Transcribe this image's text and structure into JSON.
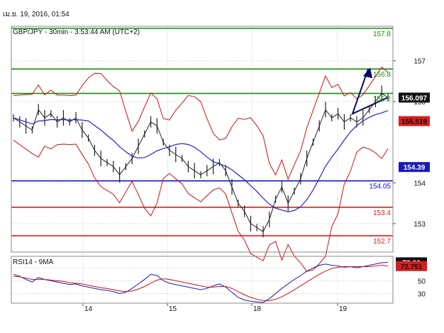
{
  "header": {
    "timestamp": "เม.ย. 19, 2016, 01:54"
  },
  "chart_data": [
    {
      "type": "line",
      "title": "GBP/JPY - 30min - 3:53:44 AM (UTC+2)",
      "ylim": [
        152.3,
        157.85
      ],
      "y_ticks": [
        {
          "v": 157,
          "label": "157"
        },
        {
          "v": 156,
          "label": "156"
        },
        {
          "v": 154,
          "label": "154"
        },
        {
          "v": 153,
          "label": "153"
        }
      ],
      "x_ticks": [
        {
          "x": 14,
          "label": "14"
        },
        {
          "x": 15,
          "label": "15"
        },
        {
          "x": 18,
          "label": "18"
        },
        {
          "x": 19,
          "label": "19"
        }
      ],
      "grid": true,
      "levels": [
        {
          "value": 157.8,
          "label": "157.8",
          "color": "#1a8c1a"
        },
        {
          "value": 156.8,
          "label": "156.8",
          "color": "#1a8c1a"
        },
        {
          "value": 156.2,
          "label": "156.2",
          "color": "#1a8c1a"
        },
        {
          "value": 154.05,
          "label": "154.05",
          "color": "#1515c8"
        },
        {
          "value": 153.4,
          "label": "153.4",
          "color": "#d42020"
        },
        {
          "value": 152.7,
          "label": "152.7",
          "color": "#d42020"
        }
      ],
      "badges": [
        {
          "value": 156.097,
          "label": "156.097",
          "bg": "#111111",
          "fg": "#ffffff"
        },
        {
          "value": 155.519,
          "label": "155.519",
          "bg": "#d41e1e",
          "fg": "#111111"
        },
        {
          "value": 154.39,
          "label": "154.39",
          "bg": "#1a1ab8",
          "fg": "#ffffff"
        }
      ],
      "price": [
        [
          13.0,
          155.6
        ],
        [
          13.1,
          155.5
        ],
        [
          13.2,
          155.4
        ],
        [
          13.3,
          155.3
        ],
        [
          13.4,
          155.8
        ],
        [
          13.5,
          155.6
        ],
        [
          13.6,
          155.7
        ],
        [
          13.7,
          155.5
        ],
        [
          13.8,
          155.6
        ],
        [
          13.9,
          155.5
        ],
        [
          14.0,
          155.6
        ],
        [
          14.1,
          155.3
        ],
        [
          14.2,
          155.1
        ],
        [
          14.3,
          154.8
        ],
        [
          14.4,
          154.6
        ],
        [
          14.5,
          154.5
        ],
        [
          14.6,
          154.4
        ],
        [
          14.7,
          154.2
        ],
        [
          14.8,
          154.4
        ],
        [
          14.9,
          154.6
        ],
        [
          15.0,
          154.9
        ],
        [
          15.1,
          155.2
        ],
        [
          15.2,
          155.5
        ],
        [
          15.3,
          155.4
        ],
        [
          15.4,
          155.0
        ],
        [
          15.5,
          154.8
        ],
        [
          15.6,
          154.7
        ],
        [
          15.7,
          154.6
        ],
        [
          15.8,
          154.4
        ],
        [
          15.9,
          154.3
        ],
        [
          16.0,
          154.2
        ],
        [
          16.1,
          154.3
        ],
        [
          16.2,
          154.4
        ],
        [
          16.3,
          154.5
        ],
        [
          16.4,
          154.3
        ],
        [
          16.5,
          153.9
        ],
        [
          16.6,
          153.5
        ],
        [
          16.7,
          153.3
        ],
        [
          16.8,
          153.0
        ],
        [
          16.9,
          152.9
        ],
        [
          17.0,
          152.8
        ],
        [
          17.1,
          153.1
        ],
        [
          17.2,
          153.6
        ],
        [
          17.3,
          153.9
        ],
        [
          17.4,
          153.5
        ],
        [
          17.5,
          153.8
        ],
        [
          17.6,
          154.1
        ],
        [
          17.7,
          154.6
        ],
        [
          17.8,
          155.0
        ],
        [
          17.9,
          155.4
        ],
        [
          18.0,
          155.8
        ],
        [
          18.1,
          155.6
        ],
        [
          18.2,
          155.7
        ],
        [
          18.3,
          155.5
        ],
        [
          18.4,
          155.6
        ],
        [
          18.5,
          155.5
        ],
        [
          18.6,
          155.6
        ],
        [
          18.7,
          155.8
        ],
        [
          18.8,
          156.0
        ],
        [
          18.9,
          156.2
        ],
        [
          19.0,
          156.1
        ]
      ],
      "forecast_path": [
        [
          19.0,
          156.1
        ],
        [
          19.12,
          155.7
        ],
        [
          19.33,
          156.8
        ]
      ],
      "indicators": [
        {
          "name": "RSI14 - 9MA",
          "y_ticks": [
            {
              "v": 70,
              "label": "70"
            },
            {
              "v": 50,
              "label": "50"
            },
            {
              "v": 30,
              "label": "30"
            }
          ],
          "badges": [
            {
              "value": 78.66,
              "label": "78.66",
              "bg": "#111111",
              "fg": "#ffffff"
            },
            {
              "value": 72.751,
              "label": "72.751",
              "bg": "#d41e1e",
              "fg": "#111111"
            }
          ],
          "ylim": [
            15,
            88
          ],
          "rsi": [
            60,
            57,
            52,
            48,
            55,
            52,
            50,
            48,
            46,
            44,
            45,
            42,
            40,
            38,
            36,
            35,
            33,
            30,
            32,
            38,
            45,
            52,
            60,
            58,
            50,
            46,
            44,
            42,
            40,
            38,
            36,
            38,
            42,
            45,
            40,
            32,
            24,
            20,
            18,
            17,
            16,
            22,
            30,
            38,
            45,
            52,
            58,
            65,
            70,
            74,
            76,
            74,
            73,
            71,
            72,
            70,
            72,
            74,
            76,
            78,
            78.66
          ],
          "ma": [
            57,
            56,
            54,
            52,
            52,
            52,
            51,
            50,
            49,
            47,
            46,
            45,
            43,
            41,
            39,
            38,
            36,
            34,
            33,
            34,
            37,
            41,
            46,
            51,
            53,
            52,
            50,
            48,
            46,
            44,
            42,
            40,
            40,
            41,
            41,
            38,
            33,
            28,
            24,
            21,
            19,
            19,
            21,
            25,
            30,
            36,
            42,
            48,
            54,
            60,
            65,
            69,
            71,
            72,
            72,
            72,
            72,
            72,
            73,
            74,
            72.751
          ]
        }
      ]
    }
  ]
}
